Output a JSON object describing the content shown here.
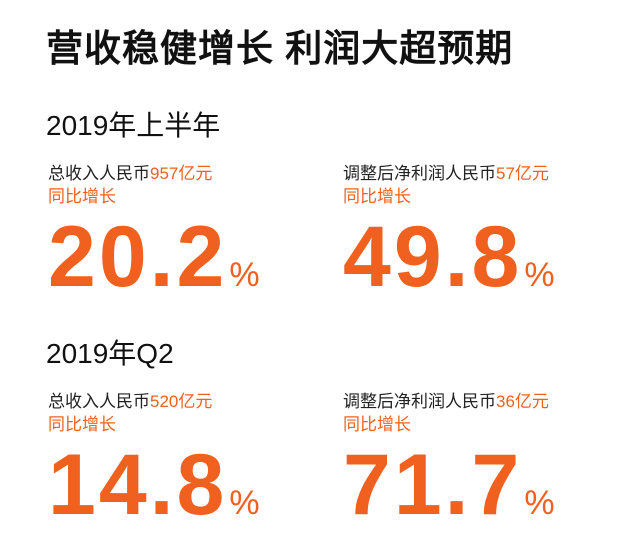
{
  "header": {
    "title": "营收稳健增长 利润大超预期"
  },
  "sections": [
    {
      "heading": "2019年上半年",
      "metrics": [
        {
          "label": "总收入人民币",
          "amount": "957亿元",
          "caption": "同比增长",
          "growth": "20.2",
          "unit": "%"
        },
        {
          "label": "调整后净利润人民币",
          "amount": "57亿元",
          "caption": "同比增长",
          "growth": "49.8",
          "unit": "%"
        }
      ]
    },
    {
      "heading": "2019年Q2",
      "metrics": [
        {
          "label": "总收入人民币",
          "amount": "520亿元",
          "caption": "同比增长",
          "growth": "14.8",
          "unit": "%"
        },
        {
          "label": "调整后净利润人民币",
          "amount": "36亿元",
          "caption": "同比增长",
          "growth": "71.7",
          "unit": "%"
        }
      ]
    }
  ]
}
